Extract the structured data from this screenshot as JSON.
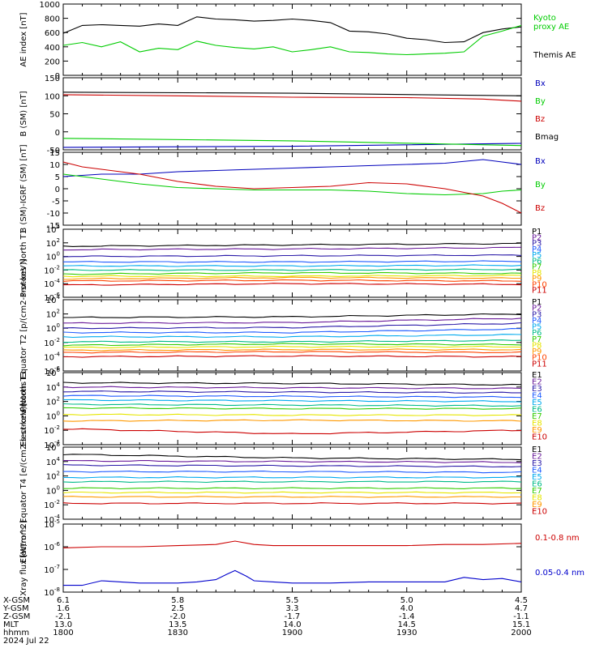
{
  "chart_data": [
    {
      "type": "line",
      "ylabel": "AE index [nT]",
      "ylim": [
        0,
        1000
      ],
      "yticks": [
        "0",
        "200",
        "400",
        "600",
        "800",
        "1000"
      ],
      "series": [
        {
          "name": "Themis AE",
          "color": "#000000",
          "x": [
            0,
            5,
            10,
            15,
            20,
            25,
            30,
            35,
            40,
            45,
            50,
            55,
            60,
            65,
            70,
            75,
            80,
            85,
            90,
            95,
            100,
            105,
            110,
            115,
            120
          ],
          "values": [
            590,
            700,
            710,
            700,
            690,
            720,
            700,
            820,
            790,
            780,
            760,
            770,
            790,
            770,
            740,
            620,
            610,
            580,
            520,
            500,
            460,
            470,
            600,
            650,
            680
          ]
        },
        {
          "name": "Kyoto proxy AE",
          "color": "#00cc00",
          "x": [
            0,
            5,
            10,
            15,
            20,
            25,
            30,
            35,
            40,
            45,
            50,
            55,
            60,
            65,
            70,
            75,
            80,
            85,
            90,
            95,
            100,
            105,
            110,
            115,
            120
          ],
          "values": [
            420,
            460,
            400,
            470,
            330,
            380,
            360,
            480,
            420,
            390,
            370,
            400,
            330,
            360,
            400,
            330,
            320,
            300,
            290,
            300,
            310,
            330,
            550,
            620,
            700
          ]
        }
      ]
    },
    {
      "type": "line",
      "ylabel": "B (SM) [nT]",
      "ylim": [
        -50,
        150
      ],
      "yticks": [
        "-50",
        "0",
        "50",
        "100",
        "150"
      ],
      "series": [
        {
          "name": "Bx",
          "color": "#0000bb",
          "x": [
            0,
            60,
            120
          ],
          "values": [
            -43,
            -40,
            -32
          ]
        },
        {
          "name": "By",
          "color": "#00cc00",
          "x": [
            0,
            60,
            120
          ],
          "values": [
            -18,
            -25,
            -38
          ]
        },
        {
          "name": "Bz",
          "color": "#cc0000",
          "x": [
            0,
            30,
            60,
            90,
            110,
            120
          ],
          "values": [
            103,
            100,
            96,
            95,
            91,
            85
          ]
        },
        {
          "name": "Bmag",
          "color": "#000000",
          "x": [
            0,
            60,
            120
          ],
          "values": [
            110,
            107,
            100
          ]
        }
      ]
    },
    {
      "type": "line",
      "ylabel": "B (SM)-IGRF (SM) [nT]",
      "ylim": [
        -15,
        15
      ],
      "yticks": [
        "-15",
        "-10",
        "-5",
        "0",
        "5",
        "10",
        "15"
      ],
      "series": [
        {
          "name": "Bx",
          "color": "#0000bb",
          "x": [
            0,
            10,
            20,
            30,
            40,
            50,
            60,
            70,
            80,
            90,
            100,
            110,
            115,
            120
          ],
          "values": [
            5,
            6,
            6,
            7,
            7.5,
            8,
            8.5,
            9,
            9.5,
            10,
            10.5,
            12,
            11,
            10
          ]
        },
        {
          "name": "By",
          "color": "#00cc00",
          "x": [
            0,
            10,
            20,
            30,
            40,
            50,
            60,
            70,
            80,
            90,
            100,
            110,
            115,
            120
          ],
          "values": [
            6,
            4,
            2,
            0.5,
            0,
            -0.5,
            -0.5,
            -0.5,
            -1,
            -2,
            -2.5,
            -2,
            -1,
            -0.5
          ]
        },
        {
          "name": "Bz",
          "color": "#cc0000",
          "x": [
            0,
            5,
            10,
            20,
            30,
            40,
            50,
            60,
            70,
            80,
            90,
            100,
            110,
            115,
            120
          ],
          "values": [
            11,
            9,
            8,
            6,
            3,
            1,
            0,
            0.5,
            1,
            2.5,
            2,
            0,
            -3,
            -6,
            -10
          ]
        }
      ]
    },
    {
      "type": "line",
      "yscale": "log",
      "ylabel": "Protons North T1",
      "ylim": [
        -6,
        4
      ],
      "yticks": [
        "10-6",
        "10-4",
        "10-2",
        "100",
        "102",
        "104"
      ],
      "series": [
        {
          "name": "P1",
          "color": "#000000",
          "values": [
            1.5,
            1.7,
            1.9
          ]
        },
        {
          "name": "P2",
          "color": "#6a1b9a",
          "values": [
            1.0,
            1.1,
            1.3
          ]
        },
        {
          "name": "P3",
          "color": "#2a1aa8",
          "values": [
            0.0,
            0.1,
            0.2
          ]
        },
        {
          "name": "P4",
          "color": "#1f5cff",
          "values": [
            -0.8,
            -0.8,
            -0.7
          ]
        },
        {
          "name": "P5",
          "color": "#00aaee",
          "values": [
            -1.4,
            -1.4,
            -1.3
          ]
        },
        {
          "name": "P6",
          "color": "#00bb88",
          "values": [
            -2.0,
            -2.0,
            -1.9
          ]
        },
        {
          "name": "P7",
          "color": "#33cc00",
          "values": [
            -2.6,
            -2.4,
            -2.5
          ]
        },
        {
          "name": "P8",
          "color": "#e6e600",
          "values": [
            -2.9,
            -2.9,
            -2.8
          ]
        },
        {
          "name": "P9",
          "color": "#ff9900",
          "values": [
            -3.3,
            -3.1,
            -3.2
          ]
        },
        {
          "name": "P10",
          "color": "#ff4400",
          "values": [
            -3.6,
            -3.5,
            -3.6
          ]
        },
        {
          "name": "P11",
          "color": "#cc0000",
          "values": [
            -4.2,
            -4.0,
            -4.1
          ]
        }
      ]
    },
    {
      "type": "line",
      "yscale": "log",
      "ylabel": "Protons Equator T2 [p/(cm2-s-sr-keV)]",
      "ylim": [
        -6,
        4
      ],
      "yticks": [
        "10-6",
        "10-4",
        "10-2",
        "100",
        "102",
        "104"
      ],
      "series": [
        {
          "name": "P1",
          "color": "#000000",
          "values": [
            1.5,
            1.6,
            2.0
          ]
        },
        {
          "name": "P2",
          "color": "#6a1b9a",
          "values": [
            0.7,
            0.8,
            1.4
          ]
        },
        {
          "name": "P3",
          "color": "#2a1aa8",
          "values": [
            0.0,
            0.1,
            0.7
          ]
        },
        {
          "name": "P4",
          "color": "#1f5cff",
          "values": [
            -0.6,
            -0.6,
            -0.1
          ]
        },
        {
          "name": "P5",
          "color": "#00aaee",
          "values": [
            -1.2,
            -1.2,
            -0.9
          ]
        },
        {
          "name": "P6",
          "color": "#00bb88",
          "values": [
            -1.9,
            -1.9,
            -1.7
          ]
        },
        {
          "name": "P7",
          "color": "#33cc00",
          "values": [
            -2.4,
            -2.2,
            -2.3
          ]
        },
        {
          "name": "P8",
          "color": "#e6e600",
          "values": [
            -2.7,
            -2.6,
            -2.6
          ]
        },
        {
          "name": "P9",
          "color": "#ff9900",
          "values": [
            -3.1,
            -3.0,
            -3.0
          ]
        },
        {
          "name": "P10",
          "color": "#ff4400",
          "values": [
            -3.4,
            -3.3,
            -3.4
          ]
        },
        {
          "name": "P11",
          "color": "#cc0000",
          "values": [
            -4.0,
            -3.9,
            -4.0
          ]
        }
      ]
    },
    {
      "type": "line",
      "yscale": "log",
      "ylabel": "Electrons North T3",
      "ylim": [
        -4,
        6
      ],
      "yticks": [
        "10-4",
        "10-2",
        "100",
        "102",
        "104",
        "106"
      ],
      "series": [
        {
          "name": "E1",
          "color": "#000000",
          "values": [
            4.6,
            4.5,
            4.3
          ]
        },
        {
          "name": "E2",
          "color": "#6a1b9a",
          "values": [
            4.0,
            3.9,
            3.8
          ]
        },
        {
          "name": "E3",
          "color": "#2a1aa8",
          "values": [
            3.4,
            3.3,
            3.2
          ]
        },
        {
          "name": "E4",
          "color": "#1f5cff",
          "values": [
            2.8,
            2.7,
            2.6
          ]
        },
        {
          "name": "E5",
          "color": "#00aaee",
          "values": [
            2.2,
            2.1,
            2.0
          ]
        },
        {
          "name": "E6",
          "color": "#00bb88",
          "values": [
            1.6,
            1.5,
            1.4
          ]
        },
        {
          "name": "E7",
          "color": "#33cc00",
          "values": [
            1.1,
            1.0,
            1.0
          ]
        },
        {
          "name": "E8",
          "color": "#e6e600",
          "values": [
            0.2,
            0.1,
            0.1
          ]
        },
        {
          "name": "E9",
          "color": "#ff9900",
          "values": [
            -0.7,
            -0.6,
            -0.7
          ]
        },
        {
          "name": "E10",
          "color": "#cc0000",
          "values": [
            -1.8,
            -2.5,
            -2.0
          ]
        }
      ]
    },
    {
      "type": "line",
      "yscale": "log",
      "ylabel": "Electrons Equator T4 [e/(cm2-s-sr-keV)]",
      "ylim": [
        -4,
        6
      ],
      "yticks": [
        "10-4",
        "10-2",
        "100",
        "102",
        "104",
        "106"
      ],
      "series": [
        {
          "name": "E1",
          "color": "#000000",
          "values": [
            5.0,
            4.5,
            4.3
          ]
        },
        {
          "name": "E2",
          "color": "#6a1b9a",
          "values": [
            4.1,
            4.0,
            3.9
          ]
        },
        {
          "name": "E3",
          "color": "#2a1aa8",
          "values": [
            3.5,
            3.4,
            3.3
          ]
        },
        {
          "name": "E4",
          "color": "#1f5cff",
          "values": [
            2.6,
            2.6,
            2.5
          ]
        },
        {
          "name": "E5",
          "color": "#00aaee",
          "values": [
            1.8,
            1.8,
            1.8
          ]
        },
        {
          "name": "E6",
          "color": "#00bb88",
          "values": [
            1.2,
            1.2,
            1.2
          ]
        },
        {
          "name": "E7",
          "color": "#33cc00",
          "values": [
            0.3,
            0.3,
            0.3
          ]
        },
        {
          "name": "E8",
          "color": "#e6e600",
          "values": [
            -0.3,
            -0.3,
            -0.3
          ]
        },
        {
          "name": "E9",
          "color": "#ff9900",
          "values": [
            -0.9,
            -0.9,
            -0.9
          ]
        },
        {
          "name": "E10",
          "color": "#cc0000",
          "values": [
            -1.8,
            -1.8,
            -1.8
          ]
        }
      ]
    },
    {
      "type": "line",
      "yscale": "log",
      "ylabel": "Xray flux [W/m^2]",
      "ylim": [
        -8,
        -5
      ],
      "yticks": [
        "10-8",
        "10-7",
        "10-6",
        "10-5"
      ],
      "series": [
        {
          "name": "0.1-0.8 nm",
          "color": "#cc0000",
          "x": [
            0,
            10,
            20,
            30,
            40,
            45,
            50,
            55,
            60,
            70,
            80,
            90,
            100,
            110,
            120
          ],
          "values": [
            -6.05,
            -6.0,
            -6.0,
            -5.95,
            -5.9,
            -5.75,
            -5.9,
            -5.95,
            -5.95,
            -5.95,
            -5.95,
            -5.95,
            -5.9,
            -5.9,
            -5.85
          ]
        },
        {
          "name": "0.05-0.4 nm",
          "color": "#0000cc",
          "x": [
            0,
            5,
            10,
            15,
            20,
            25,
            30,
            35,
            40,
            43,
            45,
            48,
            50,
            55,
            60,
            70,
            80,
            90,
            100,
            105,
            110,
            115,
            120
          ],
          "values": [
            -7.7,
            -7.7,
            -7.5,
            -7.55,
            -7.6,
            -7.6,
            -7.6,
            -7.55,
            -7.45,
            -7.2,
            -7.05,
            -7.3,
            -7.5,
            -7.55,
            -7.6,
            -7.6,
            -7.55,
            -7.55,
            -7.55,
            -7.35,
            -7.45,
            -7.4,
            -7.55
          ]
        }
      ]
    }
  ],
  "x_axis": {
    "ranges": [
      0,
      120
    ],
    "rows": [
      {
        "label": "X-GSM",
        "values": [
          "6.1",
          "5.8",
          "5.5",
          "5.0",
          "4.5"
        ]
      },
      {
        "label": "Y-GSM",
        "values": [
          "1.6",
          "2.5",
          "3.3",
          "4.0",
          "4.7"
        ]
      },
      {
        "label": "Z-GSM",
        "values": [
          "-2.1",
          "-2.0",
          "-1.7",
          "-1.4",
          "-1.1"
        ]
      },
      {
        "label": "MLT",
        "values": [
          "13.0",
          "13.5",
          "14.0",
          "14.5",
          "15.1"
        ]
      },
      {
        "label": "hhmm",
        "values": [
          "1800",
          "1830",
          "1900",
          "1930",
          "2000"
        ]
      }
    ],
    "date": "2024 Jul 22"
  },
  "legend_ae": {
    "kyoto_line1": "Kyoto",
    "kyoto_line2": "proxy AE",
    "themis": "Themis AE"
  }
}
